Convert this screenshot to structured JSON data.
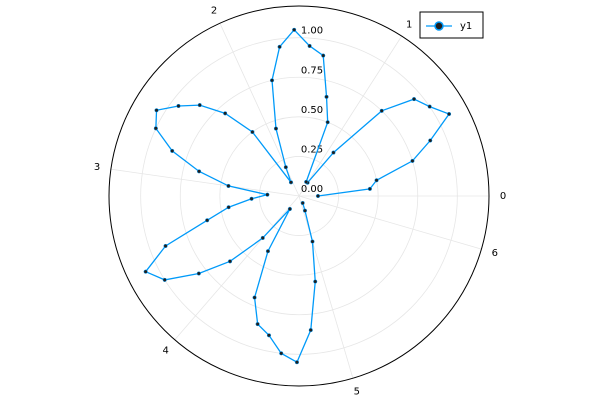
{
  "chart_data": {
    "type": "polar",
    "x": [
      0.0,
      0.1,
      0.2,
      0.3,
      0.4,
      0.5,
      0.6,
      0.7,
      0.8,
      0.9,
      1.0,
      1.1,
      1.2,
      1.3,
      1.4,
      1.5,
      1.6,
      1.7,
      1.8,
      1.9,
      2.0,
      2.1,
      2.2,
      2.3,
      2.4,
      2.5,
      2.6,
      2.7,
      2.8,
      2.9,
      3.0,
      3.1,
      3.2,
      3.3,
      3.4,
      3.5,
      3.6,
      3.7,
      3.8,
      3.9,
      4.0,
      4.1,
      4.2,
      4.3,
      4.4,
      4.5,
      4.6,
      4.7,
      4.8,
      4.9,
      5.0,
      5.1,
      5.2
    ],
    "series": [
      {
        "name": "y1",
        "color": "#009af9",
        "marker_color": "#1e1e1e",
        "values": [
          0.12,
          0.45,
          0.5,
          0.75,
          0.9,
          1.08,
          1.0,
          0.95,
          0.75,
          0.35,
          0.1,
          0.1,
          0.5,
          0.65,
          0.9,
          0.95,
          1.05,
          0.95,
          0.75,
          0.45,
          0.2,
          0.1,
          0.5,
          0.7,
          0.85,
          0.95,
          1.05,
          1.0,
          0.85,
          0.65,
          0.45,
          0.2,
          0.3,
          0.45,
          0.6,
          0.9,
          1.08,
          1.0,
          0.8,
          0.6,
          0.35,
          0.1,
          0.4,
          0.7,
          0.85,
          0.9,
          1.0,
          1.05,
          0.85,
          0.55,
          0.3,
          0.1,
          0.05
        ]
      }
    ],
    "ylim": [
      0,
      1.2
    ],
    "yticks": [
      {
        "value": 0,
        "label": "0.00"
      },
      {
        "value": 0.25,
        "label": "0.25"
      },
      {
        "value": 0.5,
        "label": "0.50"
      },
      {
        "value": 0.75,
        "label": "0.75"
      },
      {
        "value": 1,
        "label": "1.00"
      }
    ],
    "xticks": [
      0,
      1,
      2,
      3,
      4,
      5,
      6
    ],
    "grid": true,
    "legend": "top-right"
  }
}
